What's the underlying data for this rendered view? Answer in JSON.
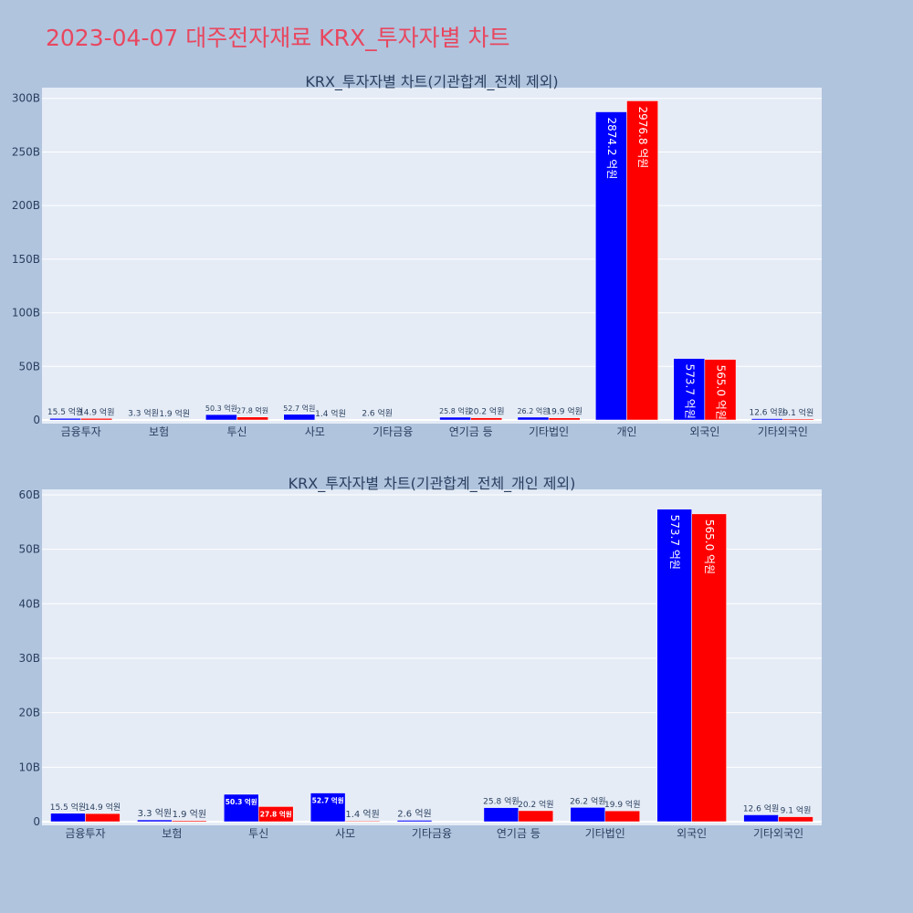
{
  "page": {
    "title": "2023-04-07 대주전자재료 KRX_투자자별 차트",
    "title_color": "#e8475f"
  },
  "colors": {
    "buy": "#0000ff",
    "sell": "#ff0000",
    "plot_bg": "#e5ecf6",
    "page_bg": "#b0c4de",
    "text": "#2a3f5f"
  },
  "chart_data": [
    {
      "type": "bar",
      "title": "KRX_투자자별 차트(기관합계_전체 제외)",
      "categories": [
        "금융투자",
        "보험",
        "투신",
        "사모",
        "기타금융",
        "연기금 등",
        "기타법인",
        "개인",
        "외국인",
        "기타외국인"
      ],
      "series": [
        {
          "color": "#0000ff",
          "values": [
            1.55,
            0.33,
            5.03,
            5.27,
            0.26,
            2.58,
            2.62,
            287.42,
            57.37,
            1.26
          ],
          "labels": [
            "15.5 억원",
            "3.3 억원",
            "50.3 억원",
            "52.7 억원",
            "2.6 억원",
            "25.8 억원",
            "26.2 억원",
            "2874.2 억원",
            "573.7 억원",
            "12.6 억원"
          ]
        },
        {
          "color": "#ff0000",
          "values": [
            1.49,
            0.19,
            2.78,
            0.14,
            0,
            2.02,
            1.99,
            297.68,
            56.5,
            0.91
          ],
          "labels": [
            "14.9 억원",
            "1.9 억원",
            "27.8 억원",
            "1.4 억원",
            "",
            "20.2 억원",
            "19.9 억원",
            "2976.8 억원",
            "565.0 억원",
            "9.1 억원"
          ]
        }
      ],
      "ylim": [
        0,
        310
      ],
      "yticks": [
        0,
        50,
        100,
        150,
        200,
        250,
        300
      ],
      "ytick_labels": [
        "0",
        "50B",
        "100B",
        "150B",
        "200B",
        "250B",
        "300B"
      ],
      "grid": true
    },
    {
      "type": "bar",
      "title": "KRX_투자자별 차트(기관합계_전체_개인 제외)",
      "categories": [
        "금융투자",
        "보험",
        "투신",
        "사모",
        "기타금융",
        "연기금 등",
        "기타법인",
        "외국인",
        "기타외국인"
      ],
      "series": [
        {
          "color": "#0000ff",
          "values": [
            1.55,
            0.33,
            5.03,
            5.27,
            0.26,
            2.58,
            2.62,
            57.37,
            1.26
          ],
          "labels": [
            "15.5 억원",
            "3.3 억원",
            "50.3 억원",
            "52.7 억원",
            "2.6 억원",
            "25.8 억원",
            "26.2 억원",
            "573.7 억원",
            "12.6 억원"
          ]
        },
        {
          "color": "#ff0000",
          "values": [
            1.49,
            0.19,
            2.78,
            0.14,
            0,
            2.02,
            1.99,
            56.5,
            0.91
          ],
          "labels": [
            "14.9 억원",
            "1.9 억원",
            "27.8 억원",
            "1.4 억원",
            "",
            "20.2 억원",
            "19.9 억원",
            "565.0 억원",
            "9.1 억원"
          ]
        }
      ],
      "ylim": [
        0,
        61
      ],
      "yticks": [
        0,
        10,
        20,
        30,
        40,
        50,
        60
      ],
      "ytick_labels": [
        "0",
        "10B",
        "20B",
        "30B",
        "40B",
        "50B",
        "60B"
      ],
      "grid": true
    }
  ]
}
